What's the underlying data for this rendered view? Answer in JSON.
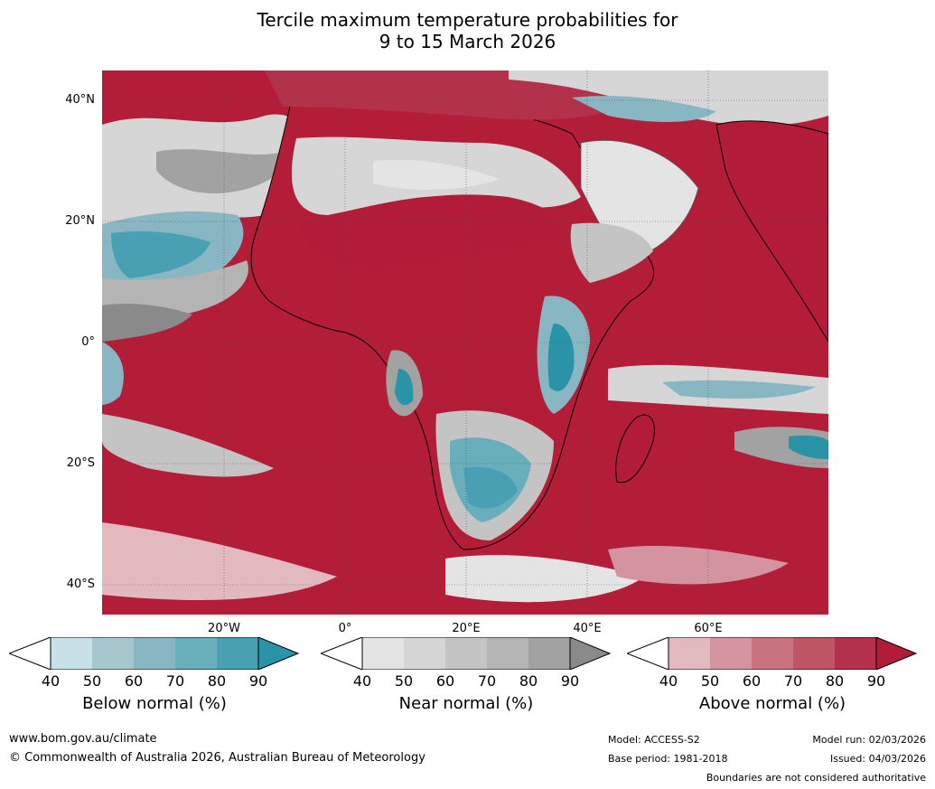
{
  "title": {
    "line1": "Tercile maximum temperature probabilities for",
    "line2": "9 to 15 March 2026"
  },
  "axes": {
    "lat_labels": [
      "40°N",
      "20°N",
      "0°",
      "20°S",
      "40°S"
    ],
    "lon_labels": [
      "20°W",
      "0°",
      "20°E",
      "40°E",
      "60°E"
    ]
  },
  "colorbars": [
    {
      "title": "Below normal (%)",
      "ticks": [
        "40",
        "50",
        "60",
        "70",
        "80",
        "90"
      ],
      "colors": [
        "#c8e0e7",
        "#a7c7ce",
        "#88b6c2",
        "#68aebb",
        "#4aa0b3"
      ],
      "low": "#ffffff",
      "high": "#2b93a8"
    },
    {
      "title": "Near normal (%)",
      "ticks": [
        "40",
        "50",
        "60",
        "70",
        "80",
        "90"
      ],
      "colors": [
        "#e4e4e4",
        "#d5d5d5",
        "#c4c4c4",
        "#b4b4b4",
        "#a2a2a2"
      ],
      "low": "#ffffff",
      "high": "#8a8a8a"
    },
    {
      "title": "Above normal (%)",
      "ticks": [
        "40",
        "50",
        "60",
        "70",
        "80",
        "90"
      ],
      "colors": [
        "#e3b9c0",
        "#d4949f",
        "#c9737f",
        "#bd5565",
        "#b3314a"
      ],
      "low": "#ffffff",
      "high": "#b31c38"
    }
  ],
  "footer": {
    "website": "www.bom.gov.au/climate",
    "copyright": "© Commonwealth of Australia 2026, Australian Bureau of Meteorology",
    "model": "Model: ACCESS-S2",
    "base_period": "Base period: 1981-2018",
    "model_run": "Model run: 02/03/2026",
    "issued": "Issued: 04/03/2026",
    "disclaimer": "Boundaries are not considered authoritative"
  }
}
